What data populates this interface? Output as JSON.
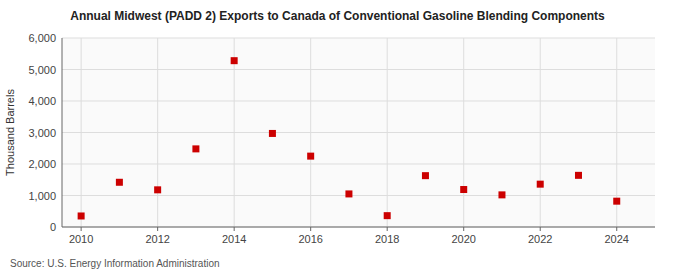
{
  "chart_data": {
    "type": "scatter",
    "title": "Annual Midwest (PADD 2) Exports to Canada of Conventional Gasoline Blending Components",
    "ylabel": "Thousand Barrels",
    "source": "Source: U.S. Energy Information Administration",
    "x": [
      2010,
      2011,
      2012,
      2013,
      2014,
      2015,
      2016,
      2017,
      2018,
      2019,
      2020,
      2021,
      2022,
      2023,
      2024
    ],
    "values": [
      350,
      1420,
      1180,
      2480,
      5280,
      2970,
      2250,
      1050,
      360,
      1630,
      1190,
      1020,
      1360,
      1640,
      820
    ],
    "color": "#cc0000",
    "marker": "square",
    "xlim": [
      2009.5,
      2025.0
    ],
    "ylim": [
      0,
      6000
    ],
    "xticks": [
      2010,
      2012,
      2014,
      2016,
      2018,
      2020,
      2022,
      2024
    ],
    "yticks": [
      0,
      {
        "value": 1000,
        "label": "1,000"
      },
      {
        "value": 2000,
        "label": "2,000"
      },
      {
        "value": 3000,
        "label": "3,000"
      },
      {
        "value": 4000,
        "label": "4,000"
      },
      {
        "value": 5000,
        "label": "5,000"
      },
      {
        "value": 6000,
        "label": "6,000"
      }
    ],
    "grid": true
  }
}
